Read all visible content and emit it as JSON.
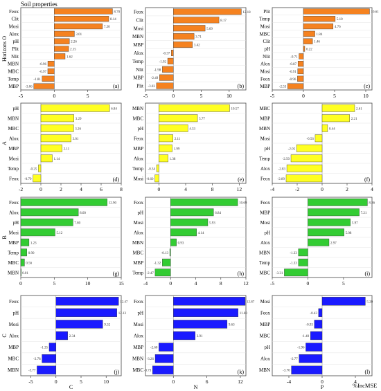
{
  "figure": {
    "title": "Soil properties",
    "x_axis_title": "%IncMSE",
    "rows": [
      {
        "label": "Horizons O",
        "color": "#f58220"
      },
      {
        "label": "A",
        "color": "#ffff22"
      },
      {
        "label": "B",
        "color": "#33cc33"
      },
      {
        "label": "C",
        "color": "#1a1aff"
      }
    ],
    "columns": [
      {
        "label": "C"
      },
      {
        "label": "N"
      },
      {
        "label": "P"
      }
    ]
  },
  "chart_data": [
    {
      "type": "bar",
      "panel": "(a)",
      "horizon": "O",
      "nutrient": "C",
      "orientation": "horizontal",
      "categories": [
        "Feox",
        "Clit",
        "Mosi",
        "Alox",
        "pH",
        "Plit",
        "Nlit",
        "MBN",
        "MBC",
        "Temp",
        "MBP"
      ],
      "values": [
        8.7,
        8.14,
        7.2,
        3.01,
        2.26,
        2.15,
        1.62,
        -0.96,
        -0.97,
        -1.81,
        -3.06
      ],
      "xlim": [
        -5,
        10
      ],
      "xticks": [
        -5,
        0,
        5
      ]
    },
    {
      "type": "bar",
      "panel": "(b)",
      "horizon": "O",
      "nutrient": "N",
      "orientation": "horizontal",
      "categories": [
        "Feox",
        "Clit",
        "Mosi",
        "MBN",
        "MBP",
        "Alox",
        "Temp",
        "Nlit",
        "MBP",
        "Plit"
      ],
      "values": [
        12.18,
        8.17,
        5.69,
        3.71,
        3.42,
        -0.37,
        -1.02,
        -1.98,
        -2.49,
        -3.03
      ],
      "xlim": [
        -5,
        13
      ],
      "xticks": [
        -5,
        0,
        5,
        10
      ]
    },
    {
      "type": "bar",
      "panel": "(c)",
      "horizon": "O",
      "nutrient": "P",
      "orientation": "horizontal",
      "categories": [
        "Plit",
        "Temp",
        "Mosi",
        "MBC",
        "Clit",
        "pH",
        "Nlit",
        "Alox",
        "Mosi",
        "Feox",
        "MBP"
      ],
      "values": [
        10.61,
        5.1,
        4.76,
        1.84,
        1.46,
        0.22,
        -0.71,
        -0.87,
        -0.91,
        -0.96,
        -2.53
      ],
      "xlim": [
        -5,
        11
      ],
      "xticks": [
        -5,
        0,
        5,
        10
      ]
    },
    {
      "type": "bar",
      "panel": "(d)",
      "horizon": "A",
      "nutrient": "C",
      "orientation": "horizontal",
      "categories": [
        "pH",
        "MBN",
        "MBC",
        "Alox",
        "MBP",
        "Mosi",
        "Temp",
        "Feox"
      ],
      "values": [
        6.84,
        3.29,
        3.26,
        3.01,
        2.11,
        1.14,
        -0.25,
        -0.79
      ],
      "xlim": [
        -2,
        8
      ],
      "xticks": [
        -2,
        0,
        2,
        4,
        6,
        8
      ]
    },
    {
      "type": "bar",
      "panel": "(e)",
      "horizon": "A",
      "nutrient": "N",
      "orientation": "horizontal",
      "categories": [
        "MBN",
        "MBC",
        "pH",
        "Feox",
        "MBP",
        "Alox",
        "Temp",
        "Mosi"
      ],
      "values": [
        10.57,
        5.77,
        4.33,
        2.11,
        1.99,
        1.38,
        -0.34,
        -0.6
      ],
      "xlim": [
        -2,
        13
      ],
      "xticks": [
        0,
        4,
        8,
        12
      ]
    },
    {
      "type": "bar",
      "panel": "(f)",
      "horizon": "A",
      "nutrient": "P",
      "orientation": "horizontal",
      "categories": [
        "MBC",
        "MBP",
        "MBN",
        "Mosi",
        "pH",
        "Temp",
        "Alox",
        "Feox"
      ],
      "values": [
        2.61,
        2.21,
        0.44,
        -0.56,
        -2.05,
        -2.5,
        -2.83,
        -2.89
      ],
      "xlim": [
        -4,
        4
      ],
      "xticks": [
        -4,
        -2,
        0,
        2,
        4
      ]
    },
    {
      "type": "bar",
      "panel": "(g)",
      "horizon": "B",
      "nutrient": "C",
      "orientation": "horizontal",
      "categories": [
        "Feox",
        "Alox",
        "pH",
        "Mosi",
        "MBP",
        "Temp",
        "MBC",
        "MBN"
      ],
      "values": [
        12.9,
        8.6,
        7.8,
        5.12,
        1.23,
        0.9,
        0.56,
        0.01
      ],
      "xlim": [
        0,
        15
      ],
      "xticks": [
        0,
        5,
        10,
        15
      ]
    },
    {
      "type": "bar",
      "panel": "(h)",
      "horizon": "B",
      "nutrient": "N",
      "orientation": "horizontal",
      "categories": [
        "Feox",
        "pH",
        "Mosi",
        "Alox",
        "MBN",
        "MBC",
        "MBP",
        "Temp"
      ],
      "values": [
        10.69,
        6.84,
        5.93,
        4.14,
        0.93,
        -0.13,
        -1.32,
        -2.47
      ],
      "xlim": [
        -4,
        12
      ],
      "xticks": [
        -4,
        0,
        4,
        8,
        12
      ]
    },
    {
      "type": "bar",
      "panel": "(i)",
      "horizon": "B",
      "nutrient": "P",
      "orientation": "horizontal",
      "categories": [
        "Feox",
        "MBP",
        "Mosi",
        "pH",
        "Alox",
        "MBN",
        "Temp",
        "MBC"
      ],
      "values": [
        8.36,
        7.21,
        5.97,
        5.08,
        2.97,
        -1.33,
        -1.33,
        -3.31
      ],
      "xlim": [
        -5,
        9
      ],
      "xticks": [
        -5,
        0,
        5
      ]
    },
    {
      "type": "bar",
      "panel": "(j)",
      "horizon": "C",
      "nutrient": "C",
      "orientation": "horizontal",
      "categories": [
        "Feox",
        "pH",
        "Mosi",
        "Alox",
        "MBP",
        "MBC",
        "MBN"
      ],
      "values": [
        12.47,
        12.13,
        9.32,
        2.34,
        -1.35,
        -2.78,
        -3.77
      ],
      "xlim": [
        -7,
        13
      ],
      "xticks": [
        -5,
        0,
        5,
        10
      ]
    },
    {
      "type": "bar",
      "panel": "(k)",
      "horizon": "C",
      "nutrient": "N",
      "orientation": "horizontal",
      "categories": [
        "Feox",
        "pH",
        "Mosi",
        "Alox",
        "MBP",
        "MBN",
        "MBC"
      ],
      "values": [
        12.87,
        11.6,
        9.63,
        3.91,
        -2.6,
        -3.26,
        -3.73
      ],
      "xlim": [
        -5,
        13
      ],
      "xticks": [
        0,
        6,
        12
      ]
    },
    {
      "type": "bar",
      "panel": "(l)",
      "horizon": "C",
      "nutrient": "P",
      "orientation": "horizontal",
      "categories": [
        "Mosi",
        "Feox",
        "MBP",
        "MBC",
        "pH",
        "Alox",
        "MBN"
      ],
      "values": [
        5.2,
        -0.43,
        -0.93,
        -1.4,
        -1.96,
        -2.77,
        -3.7
      ],
      "xlim": [
        -6,
        6
      ],
      "xticks": [
        -4,
        0,
        4
      ]
    }
  ]
}
